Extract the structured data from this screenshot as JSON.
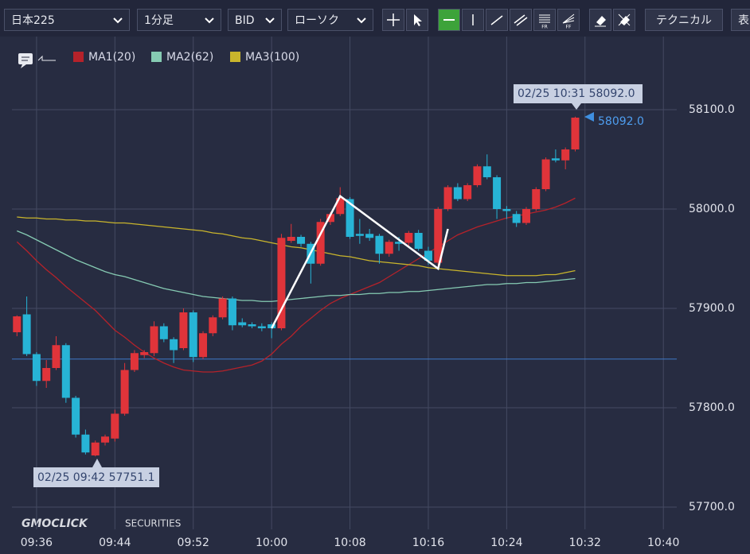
{
  "toolbar": {
    "symbol": "日本225",
    "interval": "1分足",
    "side": "BID",
    "chart_type": "ローソク",
    "technical": "テクニカル",
    "table": "表"
  },
  "watermark": {
    "brand": "GMOCLICK",
    "sub": "SECURITIES"
  },
  "chart_data": {
    "type": "candlestick",
    "up_color": "#e0343a",
    "down_color": "#27b4d6",
    "x": [
      "09:34",
      "09:35",
      "09:36",
      "09:37",
      "09:38",
      "09:39",
      "09:40",
      "09:41",
      "09:42",
      "09:43",
      "09:44",
      "09:45",
      "09:46",
      "09:47",
      "09:48",
      "09:49",
      "09:50",
      "09:51",
      "09:52",
      "09:53",
      "09:54",
      "09:55",
      "09:56",
      "09:57",
      "09:58",
      "09:59",
      "10:00",
      "10:01",
      "10:02",
      "10:03",
      "10:04",
      "10:05",
      "10:06",
      "10:07",
      "10:08",
      "10:09",
      "10:10",
      "10:11",
      "10:12",
      "10:13",
      "10:14",
      "10:15",
      "10:16",
      "10:17",
      "10:18",
      "10:19",
      "10:20",
      "10:21",
      "10:22",
      "10:23",
      "10:24",
      "10:25",
      "10:26",
      "10:27",
      "10:28",
      "10:29",
      "10:30",
      "10:31"
    ],
    "open": [
      57876,
      57894,
      57854,
      57827,
      57840,
      57863,
      57810,
      57773,
      57752,
      57765,
      57769,
      57794,
      57838,
      57853,
      57855,
      57882,
      57869,
      57860,
      57896,
      57851,
      57875,
      57891,
      57910,
      57886,
      57884,
      57882,
      57884,
      57880,
      57968,
      57972,
      57965,
      57945,
      57987,
      57995,
      58010,
      57975,
      57975,
      57973,
      57955,
      57967,
      57966,
      57976,
      57958,
      57946,
      58000,
      58022,
      58010,
      58024,
      58043,
      58032,
      58000,
      57995,
      57986,
      58000,
      58020,
      58051,
      58049,
      58060
    ],
    "high": [
      57893,
      57912,
      57856,
      57848,
      57872,
      57865,
      57812,
      57778,
      57767,
      57773,
      57798,
      57845,
      57858,
      57858,
      57887,
      57885,
      57871,
      57900,
      57898,
      57877,
      57893,
      57912,
      57912,
      57890,
      57886,
      57885,
      57886,
      57975,
      57985,
      57974,
      57967,
      57990,
      57997,
      58022,
      58012,
      57990,
      57980,
      57975,
      57969,
      57972,
      57978,
      57979,
      57962,
      58002,
      58024,
      58026,
      58026,
      58045,
      58055,
      58034,
      58003,
      57998,
      58002,
      58022,
      58052,
      58060,
      58062,
      58093
    ],
    "low": [
      57872,
      57852,
      57822,
      57820,
      57838,
      57805,
      57770,
      57753,
      57751.1,
      57762,
      57766,
      57792,
      57836,
      57850,
      57852,
      57866,
      57845,
      57858,
      57846,
      57849,
      57872,
      57889,
      57878,
      57881,
      57880,
      57877,
      57870,
      57878,
      57966,
      57962,
      57925,
      57943,
      57984,
      57993,
      57970,
      57965,
      57968,
      57945,
      57952,
      57958,
      57962,
      57958,
      57944,
      57942,
      57998,
      58008,
      58008,
      58022,
      58030,
      57990,
      57990,
      57982,
      57984,
      57998,
      58018,
      58047,
      58040,
      58058
    ],
    "close": [
      57892,
      57854,
      57827,
      57840,
      57863,
      57810,
      57773,
      57755,
      57765,
      57771,
      57794,
      57838,
      57855,
      57856,
      57882,
      57869,
      57858,
      57896,
      57851,
      57875,
      57891,
      57910,
      57883,
      57883,
      57882,
      57880,
      57880,
      57971,
      57972,
      57965,
      57945,
      57987,
      57995,
      58011,
      57972,
      57973,
      57971,
      57955,
      57967,
      57965,
      57976,
      57960,
      57948,
      58000,
      58022,
      58010,
      58024,
      58043,
      58032,
      58000,
      57998,
      57986,
      58000,
      58020,
      58050,
      58049,
      58060,
      58092
    ],
    "series": [
      {
        "name": "MA1(20)",
        "color": "#b5222a",
        "values": [
          57967,
          57958,
          57948,
          57939,
          57931,
          57922,
          57914,
          57906,
          57898,
          57888,
          57878,
          57871,
          57863,
          57856,
          57850,
          57845,
          57841,
          57838,
          57837,
          57836,
          57836,
          57837,
          57839,
          57841,
          57843,
          57847,
          57854,
          57864,
          57872,
          57882,
          57890,
          57898,
          57905,
          57910,
          57914,
          57918,
          57922,
          57926,
          57932,
          57938,
          57944,
          57950,
          57956,
          57962,
          57968,
          57974,
          57978,
          57982,
          57985,
          57988,
          57991,
          57993,
          57995,
          57997,
          57999,
          58002,
          58006,
          58011
        ]
      },
      {
        "name": "MA2(62)",
        "color": "#86cbb3",
        "values": [
          57978,
          57974,
          57969,
          57964,
          57959,
          57954,
          57949,
          57945,
          57941,
          57937,
          57934,
          57932,
          57929,
          57926,
          57923,
          57920,
          57918,
          57916,
          57914,
          57912,
          57911,
          57910,
          57909,
          57908,
          57908,
          57907,
          57907,
          57908,
          57909,
          57910,
          57911,
          57912,
          57913,
          57913,
          57914,
          57914,
          57915,
          57915,
          57916,
          57916,
          57917,
          57917,
          57918,
          57919,
          57920,
          57921,
          57922,
          57923,
          57924,
          57924,
          57925,
          57925,
          57926,
          57926,
          57927,
          57928,
          57929,
          57930
        ]
      },
      {
        "name": "MA3(100)",
        "color": "#c9b52c",
        "values": [
          57992,
          57991,
          57991,
          57990,
          57990,
          57989,
          57989,
          57988,
          57988,
          57987,
          57986,
          57986,
          57985,
          57984,
          57983,
          57982,
          57981,
          57980,
          57979,
          57978,
          57976,
          57975,
          57973,
          57971,
          57970,
          57968,
          57966,
          57964,
          57962,
          57961,
          57959,
          57957,
          57955,
          57953,
          57952,
          57950,
          57948,
          57947,
          57946,
          57945,
          57944,
          57943,
          57941,
          57940,
          57939,
          57938,
          57937,
          57936,
          57935,
          57934,
          57933,
          57933,
          57933,
          57933,
          57934,
          57934,
          57936,
          57938
        ]
      }
    ],
    "xlim": [
      "09:33",
      "10:41"
    ],
    "ylim": [
      57677.6,
      58173.6
    ],
    "xticks": [
      "09:36",
      "09:44",
      "09:52",
      "10:00",
      "10:08",
      "10:16",
      "10:24",
      "10:32",
      "10:40"
    ],
    "yticks": [
      {
        "value": 57700,
        "label": "57700.0"
      },
      {
        "value": 57800,
        "label": "57800.0"
      },
      {
        "value": 57900,
        "label": "57900.0"
      },
      {
        "value": 58000,
        "label": "58000.0"
      },
      {
        "value": 58100,
        "label": "58100.0"
      }
    ],
    "grid": true,
    "hline": {
      "value": 57849,
      "color": "#3f78c8"
    },
    "trendline": {
      "x": [
        "10:00",
        "10:07",
        "10:17",
        "10:18"
      ],
      "values": [
        57880,
        58013,
        57940,
        57980
      ],
      "color": "#ffffff"
    },
    "annotations": [
      "02/25 10:31 58092.0",
      "58092.0",
      "02/25 09:42 57751.1"
    ]
  }
}
